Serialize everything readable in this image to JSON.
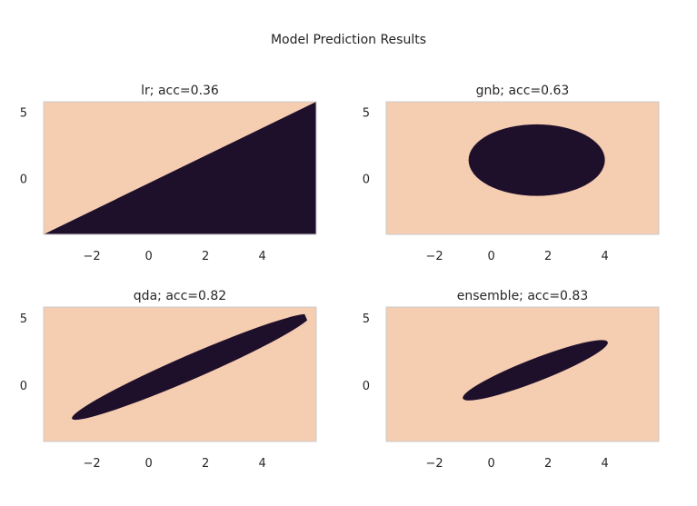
{
  "figure": {
    "title": "Model Prediction Results",
    "colors": {
      "class_0": "#f5cdb1",
      "class_1": "#1e0f2b",
      "spine": "#cccccc",
      "text": "#262626"
    }
  },
  "chart_data": [
    {
      "type": "heatmap",
      "title": "lr; acc=0.36",
      "xlim": [
        -3.7,
        5.9
      ],
      "ylim": [
        -4.2,
        5.8
      ],
      "xticks": [
        -2,
        0,
        2,
        4
      ],
      "yticks": [
        0,
        5
      ],
      "xtick_labels": [
        "−2",
        "0",
        "2",
        "4"
      ],
      "ytick_labels": [
        "0",
        "5"
      ],
      "grid": false,
      "decision_region": {
        "shape": "half-plane",
        "class": 1,
        "boundary_points": [
          [
            -3.7,
            -4.2
          ],
          [
            5.9,
            5.8
          ]
        ],
        "side": "below"
      }
    },
    {
      "type": "heatmap",
      "title": "gnb; acc=0.63",
      "xlim": [
        -3.7,
        5.9
      ],
      "ylim": [
        -4.2,
        5.8
      ],
      "xticks": [
        -2,
        0,
        2,
        4
      ],
      "yticks": [
        0,
        5
      ],
      "xtick_labels": [
        "−2",
        "0",
        "2",
        "4"
      ],
      "ytick_labels": [
        "0",
        "5"
      ],
      "grid": false,
      "decision_region": {
        "shape": "ellipse",
        "class": 1,
        "center": [
          1.6,
          1.4
        ],
        "semi_axes": [
          2.4,
          2.7
        ],
        "angle_deg": 0
      }
    },
    {
      "type": "heatmap",
      "title": "qda; acc=0.82",
      "xlim": [
        -3.7,
        5.9
      ],
      "ylim": [
        -4.2,
        5.8
      ],
      "xticks": [
        -2,
        0,
        2,
        4
      ],
      "yticks": [
        0,
        5
      ],
      "xtick_labels": [
        "−2",
        "0",
        "2",
        "4"
      ],
      "ytick_labels": [
        "0",
        "5"
      ],
      "grid": false,
      "decision_region": {
        "shape": "ellipse",
        "class": 1,
        "endpoints": [
          [
            -2.7,
            -2.5
          ],
          [
            5.7,
            5.2
          ]
        ],
        "half_width": 0.9
      }
    },
    {
      "type": "heatmap",
      "title": "ensemble; acc=0.83",
      "xlim": [
        -3.7,
        5.9
      ],
      "ylim": [
        -4.2,
        5.8
      ],
      "xticks": [
        -2,
        0,
        2,
        4
      ],
      "yticks": [
        0,
        5
      ],
      "xtick_labels": [
        "−2",
        "0",
        "2",
        "4"
      ],
      "ytick_labels": [
        "0",
        "5"
      ],
      "grid": false,
      "decision_region": {
        "shape": "ellipse",
        "class": 1,
        "endpoints": [
          [
            -1.0,
            -1.0
          ],
          [
            4.1,
            3.2
          ]
        ],
        "half_width": 0.85
      }
    }
  ]
}
